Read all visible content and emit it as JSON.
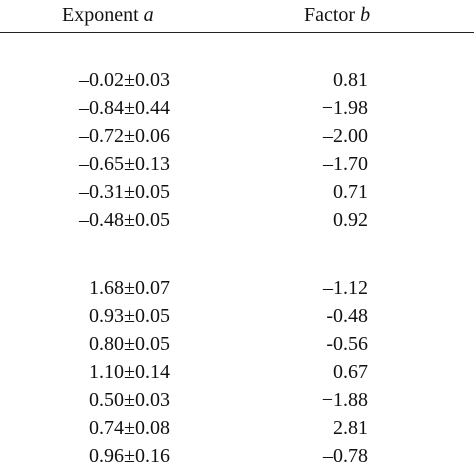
{
  "table": {
    "headers": {
      "exponent_word": "Exponent",
      "exponent_symbol": "a",
      "factor_word": "Factor",
      "factor_symbol": "b"
    },
    "groups": [
      {
        "rows": [
          {
            "a": "–0.02±0.03",
            "b": "0.81"
          },
          {
            "a": "–0.84±0.44",
            "b": "−1.98"
          },
          {
            "a": "–0.72±0.06",
            "b": "–2.00"
          },
          {
            "a": "–0.65±0.13",
            "b": "–1.70"
          },
          {
            "a": "–0.31±0.05",
            "b": "0.71"
          },
          {
            "a": "–0.48±0.05",
            "b": "0.92"
          }
        ]
      },
      {
        "rows": [
          {
            "a": "1.68±0.07",
            "b": "–1.12"
          },
          {
            "a": "0.93±0.05",
            "b": "-0.48"
          },
          {
            "a": "0.80±0.05",
            "b": "-0.56"
          },
          {
            "a": "1.10±0.14",
            "b": "0.67"
          },
          {
            "a": "0.50±0.03",
            "b": "−1.88"
          },
          {
            "a": "0.74±0.08",
            "b": "2.81"
          },
          {
            "a": "0.96±0.16",
            "b": "–0.78"
          }
        ]
      }
    ]
  }
}
